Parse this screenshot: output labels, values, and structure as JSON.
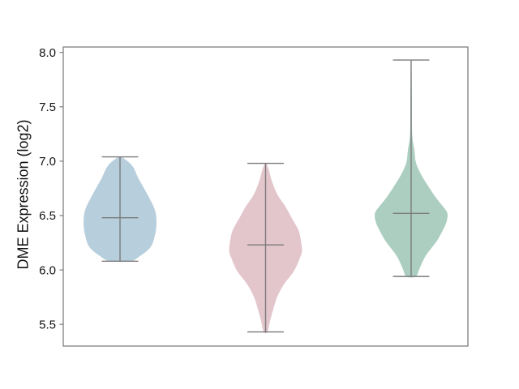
{
  "figure": {
    "background": "#ffffff"
  },
  "chart_data": {
    "type": "violin",
    "title": "",
    "xlabel": "",
    "ylabel": "DME Expression (log2)",
    "ylim": [
      5.3,
      8.05
    ],
    "yticks": [
      8.0,
      7.5,
      7.0,
      6.5,
      6.0,
      5.5
    ],
    "xlim": [
      0.61,
      3.39
    ],
    "x_tick_labels": [],
    "grid": false,
    "legend": "none",
    "violin_width": 0.5,
    "cap_width": 0.25,
    "line_color": "#7b7b7b",
    "spine_color": "#7f7f7f",
    "tick_label_color": "#111111",
    "series": [
      {
        "name": "group-1",
        "position": 1,
        "fill_color": "#b7cedd",
        "median": 6.48,
        "whisker_min": 6.08,
        "whisker_max": 7.04,
        "profile": [
          [
            7.04,
            0.05
          ],
          [
            6.96,
            0.33
          ],
          [
            6.84,
            0.51
          ],
          [
            6.69,
            0.76
          ],
          [
            6.55,
            0.96
          ],
          [
            6.43,
            1.0
          ],
          [
            6.32,
            0.96
          ],
          [
            6.21,
            0.84
          ],
          [
            6.13,
            0.56
          ],
          [
            6.08,
            0.28
          ]
        ]
      },
      {
        "name": "group-2",
        "position": 2,
        "fill_color": "#e3c5cc",
        "median": 6.23,
        "whisker_min": 5.43,
        "whisker_max": 6.98,
        "profile": [
          [
            6.98,
            0.02
          ],
          [
            6.92,
            0.09
          ],
          [
            6.81,
            0.18
          ],
          [
            6.69,
            0.33
          ],
          [
            6.58,
            0.55
          ],
          [
            6.47,
            0.73
          ],
          [
            6.36,
            0.91
          ],
          [
            6.25,
            0.98
          ],
          [
            6.17,
            1.0
          ],
          [
            6.1,
            0.93
          ],
          [
            5.99,
            0.78
          ],
          [
            5.87,
            0.51
          ],
          [
            5.76,
            0.33
          ],
          [
            5.65,
            0.22
          ],
          [
            5.54,
            0.13
          ],
          [
            5.43,
            0.05
          ]
        ]
      },
      {
        "name": "group-3",
        "position": 3,
        "fill_color": "#abcec0",
        "median": 6.52,
        "whisker_min": 5.94,
        "whisker_max": 7.93,
        "profile": [
          [
            7.93,
            0.01
          ],
          [
            7.6,
            0.02
          ],
          [
            7.25,
            0.03
          ],
          [
            7.1,
            0.09
          ],
          [
            6.99,
            0.13
          ],
          [
            6.88,
            0.27
          ],
          [
            6.77,
            0.47
          ],
          [
            6.66,
            0.69
          ],
          [
            6.56,
            0.93
          ],
          [
            6.51,
            1.0
          ],
          [
            6.43,
            0.96
          ],
          [
            6.32,
            0.8
          ],
          [
            6.25,
            0.67
          ],
          [
            6.13,
            0.4
          ],
          [
            6.02,
            0.24
          ],
          [
            5.94,
            0.13
          ]
        ]
      }
    ]
  }
}
